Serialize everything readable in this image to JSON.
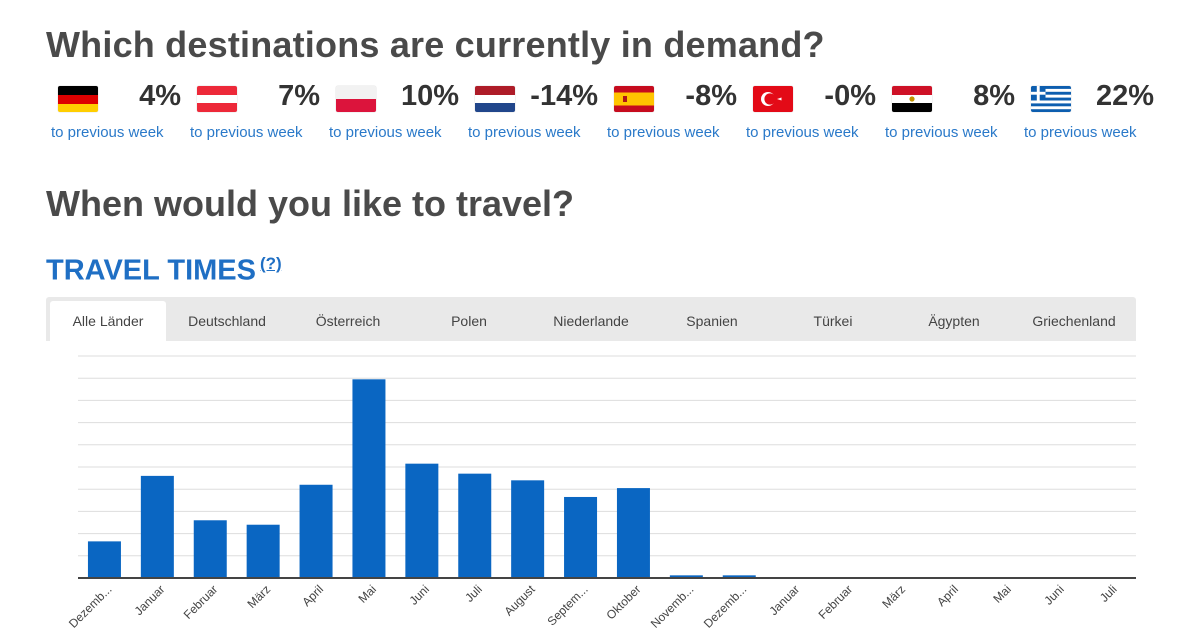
{
  "demand": {
    "title": "Which destinations are currently in demand?",
    "countries": [
      {
        "flag": "germany-flag",
        "pct": "4%",
        "note": "to previous week"
      },
      {
        "flag": "austria-flag",
        "pct": "7%",
        "note": "to previous week"
      },
      {
        "flag": "poland-flag",
        "pct": "10%",
        "note": "to previous week"
      },
      {
        "flag": "netherlands-flag",
        "pct": "-14%",
        "note": "to previous week"
      },
      {
        "flag": "spain-flag",
        "pct": "-8%",
        "note": "to previous week"
      },
      {
        "flag": "turkey-flag",
        "pct": "-0%",
        "note": "to previous week"
      },
      {
        "flag": "egypt-flag",
        "pct": "8%",
        "note": "to previous week"
      },
      {
        "flag": "greece-flag",
        "pct": "22%",
        "note": "to previous week"
      }
    ]
  },
  "travel": {
    "question": "When would you like to travel?",
    "section_title": "TRAVEL TIMES",
    "help_label": "(?)"
  },
  "tabs": [
    "Alle Länder",
    "Deutschland",
    "Österreich",
    "Polen",
    "Niederlande",
    "Spanien",
    "Türkei",
    "Ägypten",
    "Griechenland"
  ],
  "colors": {
    "bar": "#0a66c2",
    "accent": "#1f6fc4",
    "link": "#2a79c9",
    "grid": "#dddddd",
    "axis": "#444444"
  },
  "chart_data": {
    "type": "bar",
    "categories": [
      "Dezemb...",
      "Januar",
      "Februar",
      "März",
      "April",
      "Mai",
      "Juni",
      "Juli",
      "August",
      "Septem...",
      "Oktober",
      "Novemb...",
      "Dezemb...",
      "Januar",
      "Februar",
      "März",
      "April",
      "Mai",
      "Juni",
      "Juli"
    ],
    "values": [
      16.5,
      46,
      26,
      24,
      42,
      89.5,
      51.5,
      47,
      44,
      36.5,
      40.5,
      1.2,
      1.2,
      0.3,
      0.3,
      0.3,
      0.3,
      0.3,
      0.3,
      0.3
    ],
    "ylim": [
      0,
      100
    ],
    "grid": true,
    "title": "",
    "xlabel": "",
    "ylabel": ""
  }
}
